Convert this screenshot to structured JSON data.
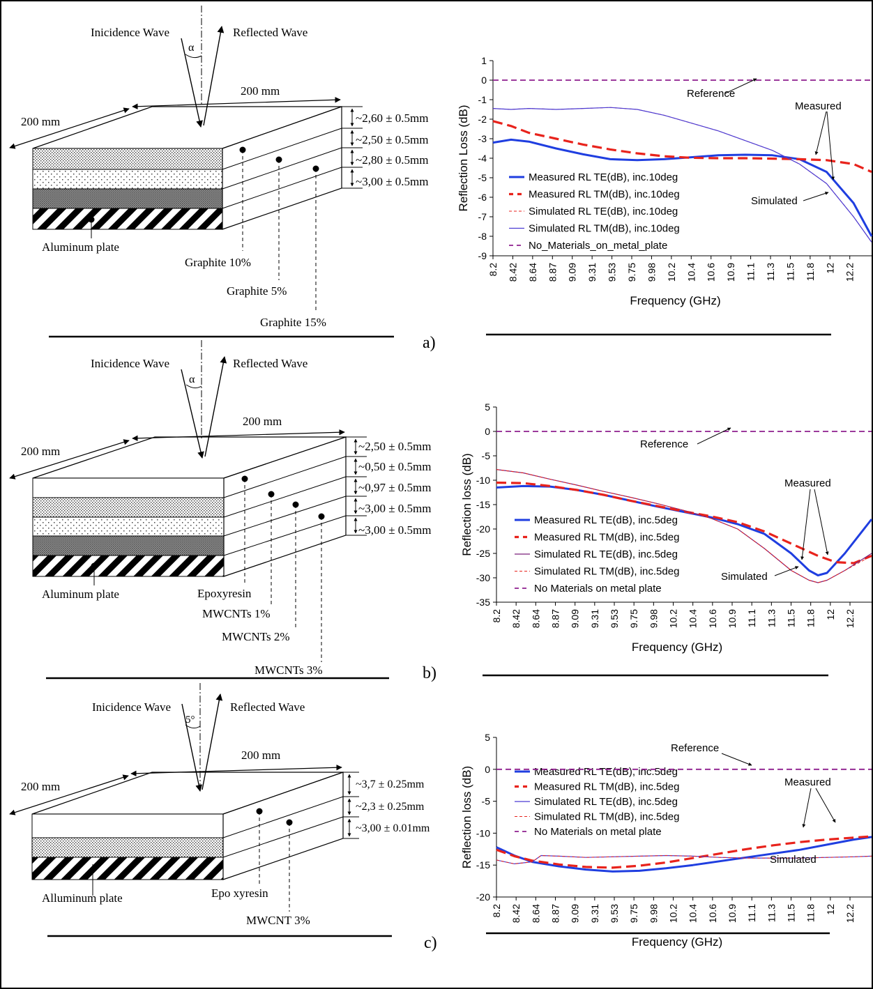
{
  "panels": [
    {
      "panel_label": "a)",
      "diagram": {
        "incidence": "Inicidence Wave",
        "reflected": "Reflected Wave",
        "angle": "α",
        "width_label": "200 mm",
        "depth_label": "200 mm",
        "plate": "Aluminum plate",
        "thicknesses": [
          "~2,60 ± 0.5mm",
          "~2,50 ± 0.5mm",
          "~2,80 ± 0.5mm",
          "~3,00 ± 0.5mm"
        ],
        "layers": [
          "Graphite 10%",
          "Graphite 5%",
          "Graphite 15%"
        ]
      }
    },
    {
      "panel_label": "b)",
      "diagram": {
        "incidence": "Inicidence Wave",
        "reflected": "Reflected Wave",
        "angle": "α",
        "width_label": "200 mm",
        "depth_label": "200 mm",
        "plate": "Aluminum plate",
        "thicknesses": [
          "~2,50 ± 0.5mm",
          "~0,50 ± 0.5mm",
          "~0,97 ± 0.5mm",
          "~3,00 ± 0.5mm",
          "~3,00 ± 0.5mm"
        ],
        "layers": [
          "Epoxyresin",
          "MWCNTs 1%",
          "MWCNTs 2%",
          "MWCNTs 3%"
        ]
      }
    },
    {
      "panel_label": "c)",
      "diagram": {
        "incidence": "Inicidence Wave",
        "reflected": "Reflected Wave",
        "angle": "5°",
        "width_label": "200 mm",
        "depth_label": "200 mm",
        "plate": "Alluminum plate",
        "thicknesses": [
          "~3,7 ± 0.25mm",
          "~2,3 ± 0.25mm",
          "~3,00 ± 0.01mm"
        ],
        "layers": [
          "Epo xyresin",
          "MWCNT 3%"
        ]
      }
    }
  ],
  "chart_data": [
    {
      "type": "line",
      "title": "",
      "xlabel": "Frequency (GHz)",
      "ylabel": "Reflection Loss (dB)",
      "categories": [
        "8.2",
        "8.42",
        "8.64",
        "8.87",
        "9.09",
        "9.31",
        "9.53",
        "9.75",
        "9.98",
        "10.2",
        "10.4",
        "10.6",
        "10.9",
        "11.1",
        "11.3",
        "11.5",
        "11.8",
        "12",
        "12.2"
      ],
      "ylim": [
        -9,
        1
      ],
      "yticks": [
        1,
        0,
        -1,
        -2,
        -3,
        -4,
        -5,
        -6,
        -7,
        -8,
        -9
      ],
      "legend_position": "lower-left",
      "series": [
        {
          "name": "Measured RL TE(dB), inc.10deg",
          "color": "#1f3ee0",
          "style": "solid-thick",
          "x": [
            8.2,
            8.4,
            8.6,
            8.9,
            9.2,
            9.5,
            9.8,
            10.1,
            10.4,
            10.7,
            11.0,
            11.3,
            11.6,
            11.9,
            12.2,
            12.4
          ],
          "y": [
            -3.2,
            -3.05,
            -3.15,
            -3.5,
            -3.8,
            -4.05,
            -4.1,
            -4.05,
            -3.95,
            -3.85,
            -3.82,
            -3.85,
            -4.05,
            -4.7,
            -6.3,
            -8.0
          ]
        },
        {
          "name": "Measured RL TM(dB), inc.10deg",
          "color": "#e8231c",
          "style": "dashed-thick",
          "x": [
            8.2,
            8.4,
            8.6,
            8.9,
            9.2,
            9.5,
            9.8,
            10.1,
            10.4,
            10.7,
            11.0,
            11.3,
            11.6,
            11.9,
            12.2,
            12.4
          ],
          "y": [
            -2.1,
            -2.35,
            -2.7,
            -3.0,
            -3.3,
            -3.55,
            -3.75,
            -3.9,
            -3.98,
            -4.0,
            -4.0,
            -4.02,
            -4.05,
            -4.1,
            -4.3,
            -4.7
          ]
        },
        {
          "name": "Simulated RL TE(dB), inc.10deg",
          "color": "#e8231c",
          "style": "dashed-thin",
          "x": [
            8.2,
            8.4,
            8.6,
            8.9,
            9.2,
            9.5,
            9.8,
            10.1,
            10.4,
            10.7,
            11.0,
            11.3,
            11.6,
            11.9,
            12.2,
            12.4
          ],
          "y": [
            -1.45,
            -1.5,
            -1.45,
            -1.5,
            -1.45,
            -1.4,
            -1.5,
            -1.8,
            -2.2,
            -2.6,
            -3.1,
            -3.6,
            -4.3,
            -5.3,
            -7.0,
            -8.3
          ]
        },
        {
          "name": "Simulated RL TM(dB), inc.10deg",
          "color": "#4b3bd4",
          "style": "solid-thin",
          "x": [
            8.2,
            8.4,
            8.6,
            8.9,
            9.2,
            9.5,
            9.8,
            10.1,
            10.4,
            10.7,
            11.0,
            11.3,
            11.6,
            11.9,
            12.2,
            12.4
          ],
          "y": [
            -1.45,
            -1.5,
            -1.45,
            -1.5,
            -1.45,
            -1.4,
            -1.5,
            -1.8,
            -2.2,
            -2.6,
            -3.1,
            -3.6,
            -4.3,
            -5.3,
            -7.0,
            -8.3
          ]
        },
        {
          "name": "No_Materials_on_metal_plate",
          "color": "#8e1f8e",
          "style": "dashed-medium",
          "x": [
            8.2,
            12.4
          ],
          "y": [
            0,
            0
          ]
        }
      ],
      "annotations": [
        "Reference",
        "Measured",
        "Simulated"
      ]
    },
    {
      "type": "line",
      "title": "",
      "xlabel": "Frequency (GHz)",
      "ylabel": "Reflection loss (dB)",
      "categories": [
        "8.2",
        "8.42",
        "8.64",
        "8.87",
        "9.09",
        "9.31",
        "9.53",
        "9.75",
        "9.98",
        "10.2",
        "10.4",
        "10.6",
        "10.9",
        "11.1",
        "11.3",
        "11.5",
        "11.8",
        "12",
        "12.2"
      ],
      "ylim": [
        -35,
        5
      ],
      "yticks": [
        5,
        0,
        -5,
        -10,
        -15,
        -20,
        -25,
        -30,
        -35
      ],
      "legend_position": "lower-left",
      "series": [
        {
          "name": "Measured RL TE(dB), inc.5deg",
          "color": "#1f3ee0",
          "style": "solid-thick",
          "x": [
            8.2,
            8.5,
            8.8,
            9.1,
            9.4,
            9.7,
            10.0,
            10.3,
            10.6,
            10.9,
            11.2,
            11.5,
            11.7,
            11.8,
            11.9,
            12.1,
            12.4
          ],
          "y": [
            -11.5,
            -11.2,
            -11.3,
            -12.0,
            -13.0,
            -14.2,
            -15.4,
            -16.5,
            -17.6,
            -19.0,
            -21.0,
            -25.0,
            -28.5,
            -29.5,
            -29.0,
            -25.0,
            -18.0
          ]
        },
        {
          "name": "Measured RL TM(dB), inc.5deg",
          "color": "#e8231c",
          "style": "dashed-thick",
          "x": [
            8.2,
            8.5,
            8.8,
            9.1,
            9.4,
            9.7,
            10.0,
            10.3,
            10.6,
            10.9,
            11.2,
            11.5,
            11.8,
            12.0,
            12.2,
            12.4
          ],
          "y": [
            -10.5,
            -10.6,
            -11.2,
            -12.0,
            -13.0,
            -14.2,
            -15.3,
            -16.4,
            -17.4,
            -18.6,
            -20.5,
            -23.0,
            -25.5,
            -26.8,
            -27.0,
            -25.5
          ]
        },
        {
          "name": "Simulated RL TE(dB), inc.5deg",
          "color": "#7a1f7a",
          "style": "solid-thin",
          "x": [
            8.2,
            8.5,
            8.8,
            9.1,
            9.4,
            9.7,
            10.0,
            10.3,
            10.6,
            10.9,
            11.2,
            11.5,
            11.7,
            11.8,
            11.9,
            12.1,
            12.4
          ],
          "y": [
            -7.8,
            -8.5,
            -9.8,
            -11.0,
            -12.3,
            -13.5,
            -14.8,
            -16.2,
            -17.8,
            -20.0,
            -24.0,
            -28.5,
            -30.5,
            -31.0,
            -30.5,
            -28.5,
            -25.0
          ]
        },
        {
          "name": "Simulated RL TM(dB), inc.5deg",
          "color": "#e8231c",
          "style": "dashed-thin",
          "x": [
            8.2,
            8.5,
            8.8,
            9.1,
            9.4,
            9.7,
            10.0,
            10.3,
            10.6,
            10.9,
            11.2,
            11.5,
            11.7,
            11.8,
            11.9,
            12.1,
            12.4
          ],
          "y": [
            -7.8,
            -8.5,
            -9.8,
            -11.0,
            -12.3,
            -13.5,
            -14.8,
            -16.2,
            -17.8,
            -20.0,
            -24.0,
            -28.5,
            -30.5,
            -31.0,
            -30.5,
            -28.5,
            -25.5
          ]
        },
        {
          "name": "No Materials on metal plate",
          "color": "#8e1f8e",
          "style": "dashed-medium",
          "x": [
            8.2,
            12.4
          ],
          "y": [
            0,
            0
          ]
        }
      ],
      "annotations": [
        "Reference",
        "Measured",
        "Simulated"
      ]
    },
    {
      "type": "line",
      "title": "",
      "xlabel": "Frequency (GHz)",
      "ylabel": "Reflection loss (dB)",
      "categories": [
        "8.2",
        "8.42",
        "8.64",
        "8.87",
        "9.09",
        "9.31",
        "9.53",
        "9.75",
        "9.98",
        "10.2",
        "10.4",
        "10.6",
        "10.9",
        "11.1",
        "11.3",
        "11.5",
        "11.8",
        "12",
        "12.2"
      ],
      "ylim": [
        -20,
        5
      ],
      "yticks": [
        5,
        0,
        -5,
        -10,
        -15,
        -20
      ],
      "legend_position": "top-left",
      "series": [
        {
          "name": "Measured RL TE(dB), inc.5deg",
          "color": "#1f3ee0",
          "style": "solid-thick",
          "x": [
            8.2,
            8.4,
            8.6,
            8.9,
            9.2,
            9.5,
            9.8,
            10.1,
            10.4,
            10.7,
            11.0,
            11.3,
            11.6,
            11.9,
            12.2,
            12.4
          ],
          "y": [
            -12.2,
            -13.5,
            -14.5,
            -15.2,
            -15.7,
            -16.0,
            -15.9,
            -15.5,
            -15.0,
            -14.4,
            -13.8,
            -13.2,
            -12.6,
            -11.8,
            -11.0,
            -10.6
          ]
        },
        {
          "name": "Measured RL TM(dB), inc.5deg",
          "color": "#e8231c",
          "style": "dashed-thick",
          "x": [
            8.2,
            8.4,
            8.6,
            8.9,
            9.2,
            9.5,
            9.8,
            10.1,
            10.4,
            10.7,
            11.0,
            11.3,
            11.6,
            11.9,
            12.2,
            12.4
          ],
          "y": [
            -12.6,
            -13.6,
            -14.3,
            -14.9,
            -15.3,
            -15.4,
            -15.1,
            -14.6,
            -13.9,
            -13.2,
            -12.5,
            -11.9,
            -11.4,
            -11.0,
            -10.7,
            -10.5
          ]
        },
        {
          "name": "Simulated RL TE(dB), inc.5deg",
          "color": "#4b3bd4",
          "style": "solid-thin",
          "x": [
            8.2,
            8.4,
            8.6,
            8.7,
            8.9,
            9.2,
            9.5,
            9.8,
            10.1,
            10.4,
            10.7,
            11.0,
            11.3,
            11.6,
            11.9,
            12.2,
            12.4
          ],
          "y": [
            -14.2,
            -14.8,
            -14.5,
            -13.5,
            -13.6,
            -13.8,
            -13.7,
            -13.6,
            -13.5,
            -13.6,
            -13.8,
            -13.9,
            -13.9,
            -13.9,
            -13.8,
            -13.7,
            -13.6
          ]
        },
        {
          "name": "Simulated RL TM(dB), inc.5deg",
          "color": "#e8231c",
          "style": "dashed-thin",
          "x": [
            8.2,
            8.4,
            8.6,
            8.7,
            8.9,
            9.2,
            9.5,
            9.8,
            10.1,
            10.4,
            10.7,
            11.0,
            11.3,
            11.6,
            11.9,
            12.2,
            12.4
          ],
          "y": [
            -14.2,
            -14.8,
            -14.5,
            -13.5,
            -13.6,
            -13.8,
            -13.7,
            -13.6,
            -13.5,
            -13.6,
            -13.8,
            -13.9,
            -13.9,
            -13.9,
            -13.8,
            -13.7,
            -13.6
          ]
        },
        {
          "name": "No Materials on metal plate",
          "color": "#8e1f8e",
          "style": "dashed-medium",
          "x": [
            8.2,
            12.4
          ],
          "y": [
            0,
            0
          ]
        }
      ],
      "annotations": [
        "Reference",
        "Measured",
        "Simulated"
      ]
    }
  ]
}
